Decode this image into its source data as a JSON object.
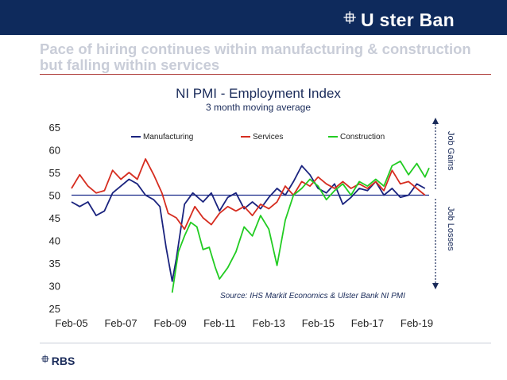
{
  "header": {
    "brand_mark": "⯐",
    "brand": "U ster Ban",
    "headline": "Pace of hiring continues within manufacturing & construction but falling within services"
  },
  "footer": {
    "brand_mark": "⯐",
    "brand": "RBS"
  },
  "colors": {
    "banner": "#0e2a5c",
    "manufacturing": "#1a237e",
    "services": "#d62d20",
    "construction": "#22cc22",
    "baseline": "#1a2b8a"
  },
  "chart_data": {
    "type": "line",
    "title": "NI PMI - Employment Index",
    "subtitle": "3 month moving average",
    "x_ticks": [
      "Feb-05",
      "Feb-07",
      "Feb-09",
      "Feb-11",
      "Feb-13",
      "Feb-15",
      "Feb-17",
      "Feb-19"
    ],
    "y_ticks": [
      "65",
      "60",
      "55",
      "50",
      "45",
      "40",
      "35",
      "30",
      "25"
    ],
    "ylim": [
      25,
      65
    ],
    "xlim": [
      "2005-02",
      "2019-08"
    ],
    "baseline": 50,
    "legend_position": "top",
    "annotation": "Source: IHS Markit Economics & Ulster Bank NI PMI",
    "side_labels": {
      "upper": "Job Gains",
      "lower": "Job Losses"
    },
    "series": [
      {
        "name": "Manufacturing",
        "points": [
          [
            "2005-02",
            48.5
          ],
          [
            "2005-06",
            47.5
          ],
          [
            "2005-10",
            48.5
          ],
          [
            "2006-02",
            45.5
          ],
          [
            "2006-06",
            46.5
          ],
          [
            "2006-10",
            50.5
          ],
          [
            "2007-02",
            52.0
          ],
          [
            "2007-06",
            53.5
          ],
          [
            "2007-10",
            52.5
          ],
          [
            "2008-02",
            50.0
          ],
          [
            "2008-06",
            49.0
          ],
          [
            "2008-09",
            47.5
          ],
          [
            "2008-12",
            38.5
          ],
          [
            "2009-03",
            31.0
          ],
          [
            "2009-05",
            36.0
          ],
          [
            "2009-09",
            48.0
          ],
          [
            "2010-01",
            50.5
          ],
          [
            "2010-06",
            48.5
          ],
          [
            "2010-10",
            50.5
          ],
          [
            "2011-02",
            46.5
          ],
          [
            "2011-06",
            49.5
          ],
          [
            "2011-10",
            50.5
          ],
          [
            "2012-02",
            47.0
          ],
          [
            "2012-06",
            48.5
          ],
          [
            "2012-10",
            47.0
          ],
          [
            "2013-02",
            49.5
          ],
          [
            "2013-06",
            51.5
          ],
          [
            "2013-10",
            50.0
          ],
          [
            "2014-02",
            53.0
          ],
          [
            "2014-06",
            56.5
          ],
          [
            "2014-10",
            54.5
          ],
          [
            "2015-02",
            51.5
          ],
          [
            "2015-06",
            50.5
          ],
          [
            "2015-10",
            52.5
          ],
          [
            "2016-02",
            48.0
          ],
          [
            "2016-06",
            49.5
          ],
          [
            "2016-10",
            51.5
          ],
          [
            "2017-02",
            51.0
          ],
          [
            "2017-06",
            53.0
          ],
          [
            "2017-10",
            50.0
          ],
          [
            "2018-02",
            51.5
          ],
          [
            "2018-06",
            49.5
          ],
          [
            "2018-10",
            50.0
          ],
          [
            "2019-02",
            52.5
          ],
          [
            "2019-06",
            51.5
          ]
        ]
      },
      {
        "name": "Services",
        "points": [
          [
            "2005-02",
            51.5
          ],
          [
            "2005-06",
            54.5
          ],
          [
            "2005-10",
            52.0
          ],
          [
            "2006-02",
            50.5
          ],
          [
            "2006-06",
            51.0
          ],
          [
            "2006-10",
            55.5
          ],
          [
            "2007-02",
            53.5
          ],
          [
            "2007-06",
            55.0
          ],
          [
            "2007-10",
            53.5
          ],
          [
            "2008-02",
            58.0
          ],
          [
            "2008-06",
            54.5
          ],
          [
            "2008-10",
            50.5
          ],
          [
            "2009-01",
            46.0
          ],
          [
            "2009-05",
            45.0
          ],
          [
            "2009-09",
            42.5
          ],
          [
            "2010-02",
            47.5
          ],
          [
            "2010-06",
            45.0
          ],
          [
            "2010-10",
            43.5
          ],
          [
            "2011-02",
            46.0
          ],
          [
            "2011-06",
            47.5
          ],
          [
            "2011-10",
            46.5
          ],
          [
            "2012-02",
            47.5
          ],
          [
            "2012-06",
            45.5
          ],
          [
            "2012-10",
            48.0
          ],
          [
            "2013-02",
            47.0
          ],
          [
            "2013-06",
            48.5
          ],
          [
            "2013-10",
            52.0
          ],
          [
            "2014-02",
            50.0
          ],
          [
            "2014-06",
            53.0
          ],
          [
            "2014-10",
            52.0
          ],
          [
            "2015-02",
            54.0
          ],
          [
            "2015-06",
            52.5
          ],
          [
            "2015-10",
            51.5
          ],
          [
            "2016-02",
            53.0
          ],
          [
            "2016-06",
            51.5
          ],
          [
            "2016-10",
            52.5
          ],
          [
            "2017-02",
            51.5
          ],
          [
            "2017-06",
            53.0
          ],
          [
            "2017-10",
            51.0
          ],
          [
            "2018-02",
            55.5
          ],
          [
            "2018-06",
            52.5
          ],
          [
            "2018-10",
            53.0
          ],
          [
            "2019-02",
            51.5
          ],
          [
            "2019-06",
            50.0
          ]
        ]
      },
      {
        "name": "Construction",
        "points": [
          [
            "2009-03",
            28.5
          ],
          [
            "2009-06",
            37.5
          ],
          [
            "2009-09",
            41.0
          ],
          [
            "2009-12",
            44.0
          ],
          [
            "2010-03",
            43.0
          ],
          [
            "2010-06",
            38.0
          ],
          [
            "2010-09",
            38.5
          ],
          [
            "2010-12",
            34.0
          ],
          [
            "2011-02",
            31.5
          ],
          [
            "2011-06",
            34.0
          ],
          [
            "2011-10",
            37.5
          ],
          [
            "2012-02",
            43.0
          ],
          [
            "2012-06",
            41.0
          ],
          [
            "2012-10",
            45.5
          ],
          [
            "2013-02",
            42.5
          ],
          [
            "2013-06",
            34.5
          ],
          [
            "2013-10",
            44.5
          ],
          [
            "2014-02",
            50.0
          ],
          [
            "2014-06",
            51.5
          ],
          [
            "2014-10",
            53.5
          ],
          [
            "2015-02",
            52.0
          ],
          [
            "2015-06",
            49.0
          ],
          [
            "2015-10",
            51.0
          ],
          [
            "2016-02",
            52.5
          ],
          [
            "2016-06",
            50.0
          ],
          [
            "2016-10",
            53.0
          ],
          [
            "2017-02",
            52.0
          ],
          [
            "2017-06",
            53.5
          ],
          [
            "2017-10",
            52.0
          ],
          [
            "2018-02",
            56.5
          ],
          [
            "2018-06",
            57.5
          ],
          [
            "2018-10",
            54.5
          ],
          [
            "2019-02",
            57.0
          ],
          [
            "2019-06",
            54.0
          ],
          [
            "2019-08",
            56.0
          ]
        ]
      }
    ]
  }
}
